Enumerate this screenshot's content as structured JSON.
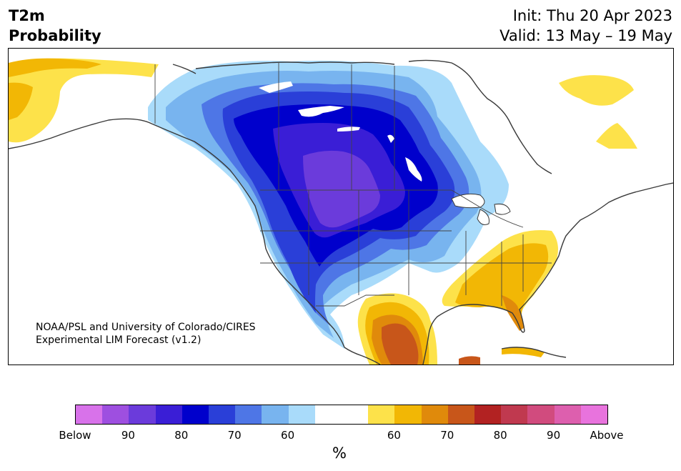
{
  "header": {
    "title_line1": "T2m",
    "title_line2": "Probability",
    "init": "Init: Thu 20 Apr 2023",
    "valid": "Valid: 13 May – 19 May"
  },
  "map": {
    "credit_line1": "NOAA/PSL and University of Colorado/CIRES",
    "credit_line2": "Experimental LIM Forecast (v1.2)",
    "colors": {
      "below_60": "#a9dbfa",
      "below_65": "#78b4ef",
      "below_70": "#4e76e6",
      "below_75": "#2a3fd8",
      "below_80": "#0000cc",
      "below_85": "#3a1ed6",
      "below_90": "#6b3bdb",
      "above_60": "#fde24a",
      "above_65": "#f2b705",
      "above_70": "#e08a0b",
      "above_75": "#c8561a",
      "above_80": "#b22222",
      "coast": "#3a3a3a",
      "border": "#444444"
    }
  },
  "colorbar": {
    "colors": [
      "#d872ea",
      "#9e4fe0",
      "#6b3bdb",
      "#3a1ed6",
      "#0000cc",
      "#2a3fd8",
      "#4e76e6",
      "#78b4ef",
      "#a9dbfa",
      "#ffffff",
      "#ffffff",
      "#fde24a",
      "#f2b705",
      "#e08a0b",
      "#c8561a",
      "#b22222",
      "#c0394f",
      "#d14b7e",
      "#dd5fae",
      "#e873dd"
    ],
    "labels": [
      "Below",
      "90",
      "80",
      "70",
      "60",
      "60",
      "70",
      "80",
      "90",
      "Above"
    ],
    "unit": "%"
  }
}
